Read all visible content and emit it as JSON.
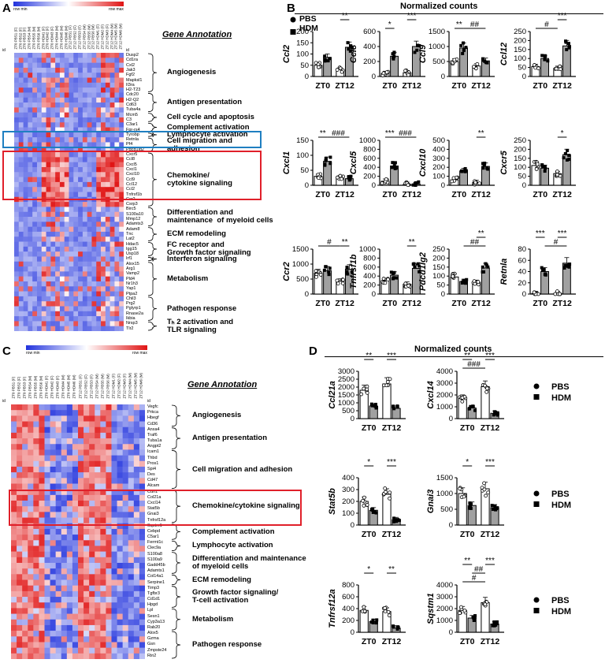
{
  "panels": {
    "A": "A",
    "B": "B",
    "C": "C",
    "D": "D"
  },
  "heatmapA": {
    "legend_min": "row min",
    "legend_max": "row max",
    "id_label": "id",
    "columns": [
      "ZT0 PBS1 (F)",
      "ZT0 PBS2 (F)",
      "ZT0 PBS3 (F)",
      "ZT0 PBS4 (M)",
      "ZT0 PBS5 (M)",
      "ZT0 PBS6 (M)",
      "ZT0 HDM1 (F)",
      "ZT0 HDM2 (F)",
      "ZT0 HDM3 (F)",
      "ZT0 HDM4 (M)",
      "ZT0 HDM5 (M)",
      "ZT0 HDM6 (M)",
      "ZT12 PBS1 (F)",
      "ZT12 PBS2 (F)",
      "ZT12 PBS3 (F)",
      "ZT12 PBS4 (M)",
      "ZT12 PBS5 (M)",
      "ZT12 PBS6 (M)",
      "ZT12 HDM1 (F)",
      "ZT12 HDM2 (F)",
      "ZT12 HDM3 (F)",
      "ZT12 HDM4 (M)",
      "ZT12 HDM5 (M)",
      "ZT12 HDM6 (M)"
    ],
    "genes": [
      "Dusp2",
      "Cd1ra",
      "Cxl2",
      "Jak3",
      "Fgf2",
      "Mapksl1",
      "Il3ra",
      "H2-T23",
      "Cdc20",
      "H2-Q2",
      "Cd63",
      "Tuba4a",
      "Mcm5",
      "C3",
      "C3ar1",
      "Fpr-rs4",
      "Tyrobp",
      "Retnla",
      "Pf4",
      "Pdcd1lg2",
      "Cxcr5",
      "Ccl8",
      "Cxcl5",
      "Cxcl1",
      "Cxcl10",
      "Ccl9",
      "Ccl12",
      "Ccl2",
      "Tnfrsf1b",
      "Ccr2",
      "Csrp3",
      "Birc5",
      "S100a10",
      "Mmp12",
      "Adamts3",
      "Adam8",
      "Tnc",
      "Lat2",
      "Hdac5",
      "Igg15",
      "Usp18",
      "Irf1",
      "Alox15",
      "Arg1",
      "Vamp2",
      "Pld4",
      "Nr1h3",
      "Yap1",
      "Ptpa2",
      "Chil3",
      "Prg2",
      "Pglyrp1",
      "Rnase2a",
      "Ikbia",
      "Nrsp3",
      "Tlr2"
    ],
    "title": "Gene Annotation",
    "annotations": [
      "Angiogenesis",
      "Antigen presentation",
      "Cell cycle and apoptosis",
      "Complement activation",
      "Lymphocyte activation",
      "Cell migration and\nadhesion",
      "Chemokine/\ncytokine signaling",
      "Differentiation and\nmaintenance  of myeloid cells",
      "ECM remodeling",
      "FC receptor and\nGrowth factor signaling",
      "Interferon signaling",
      "Metabolism",
      "Pathogen response",
      "Tₕ 2 activation and\nTLR signaling"
    ]
  },
  "heatmapC": {
    "legend_min": "row min",
    "legend_max": "row max",
    "id_label": "id",
    "columns": [
      "ZT0 PBS1 (F)",
      "ZT0 PBS2 (F)",
      "ZT0 PBS3 (F)",
      "ZT0 PBS4 (M)",
      "ZT0 PBS5 (M)",
      "ZT0 PBS6 (M)",
      "ZT0 HDM1 (F)",
      "ZT0 HDM2 (F)",
      "ZT0 HDM3 (F)",
      "ZT0 HDM4 (M)",
      "ZT0 HDM5 (M)",
      "ZT0 HDM6 (M)",
      "ZT12 PBS1 (F)",
      "ZT12 PBS2 (F)",
      "ZT12 PBS3 (F)",
      "ZT12 PBS4 (M)",
      "ZT12 PBS5 (M)",
      "ZT12 PBS6 (M)",
      "ZT12 HDM1 (F)",
      "ZT12 HDM2 (F)",
      "ZT12 HDM3 (F)",
      "ZT12 HDM4 (M)",
      "ZT12 HDM5 (M)",
      "ZT12 HDM6 (M)"
    ],
    "genes": [
      "Vegfc",
      "Prkca",
      "Hbegf",
      "Cd36",
      "Anxa4",
      "Traf6",
      "Tuba1a",
      "Angpt2",
      "Icam1",
      "Thbd",
      "Pros1",
      "Spi4",
      "Des",
      "Cd47",
      "Alcam",
      "Cdh1",
      "Col21a",
      "Cxcl14",
      "Stat5b",
      "Gnai3",
      "Tnfrsf12a",
      "Sqstm1",
      "Cebpd",
      "C5ar1",
      "Fermt1c",
      "Clec9a",
      "S100a8",
      "S100a9",
      "Gadd45b",
      "Adamts1",
      "Col14a1",
      "Serpine1",
      "Timp3",
      "Tgfbr3",
      "Cd1d1",
      "Hpgd",
      "Lpl",
      "Sesn1",
      "Cyp3a13",
      "Rab20",
      "Alox5",
      "Gzma",
      "Gsn",
      "Zmpste24",
      "Rin2"
    ],
    "title": "Gene Annotation",
    "annotations": [
      "Angiogenesis",
      "Antigen presentation",
      "Cell migration and adhesion",
      "Chemokine/cytokine signaling",
      "Complement activation",
      "Lymphocyte activation",
      "Differentiation and maintenance\nof myeloid cells",
      "ECM remodeling",
      "Growth factor signaling/\nT-cell activation",
      "Metabolism",
      "Pathogen response"
    ]
  },
  "panelB": {
    "title": "Normalized counts",
    "legend": [
      "PBS",
      "HDM"
    ],
    "x_labels": [
      "ZT0",
      "ZT12"
    ]
  },
  "panelD": {
    "title": "Normalized counts",
    "legend": [
      "PBS",
      "HDM"
    ],
    "x_labels": [
      "ZT0",
      "ZT12"
    ]
  },
  "chart_data": [
    {
      "type": "bar",
      "panel": "B",
      "gene": "Ccl2",
      "ylim": [
        0,
        200
      ],
      "yticks": [
        0,
        50,
        100,
        150,
        200
      ],
      "categories": [
        "ZT0",
        "ZT12"
      ],
      "series": [
        {
          "name": "PBS",
          "values": [
            50,
            30
          ]
        },
        {
          "name": "HDM",
          "values": [
            85,
            130
          ]
        }
      ],
      "annotations": [
        {
          "text": "**",
          "between": "ZT12 PBS-HDM"
        }
      ]
    },
    {
      "type": "bar",
      "panel": "B",
      "gene": "Ccl8",
      "ylim": [
        0,
        600
      ],
      "yticks": [
        0,
        200,
        400,
        600
      ],
      "categories": [
        "ZT0",
        "ZT12"
      ],
      "series": [
        {
          "name": "PBS",
          "values": [
            40,
            50
          ]
        },
        {
          "name": "HDM",
          "values": [
            270,
            400
          ]
        }
      ],
      "annotations": [
        {
          "text": "*",
          "between": "ZT0 PBS-HDM"
        },
        {
          "text": "***",
          "between": "ZT12 PBS-HDM"
        }
      ]
    },
    {
      "type": "bar",
      "panel": "B",
      "gene": "Ccl9",
      "ylim": [
        0,
        1500
      ],
      "yticks": [
        0,
        500,
        1000,
        1500
      ],
      "categories": [
        "ZT0",
        "ZT12"
      ],
      "series": [
        {
          "name": "PBS",
          "values": [
            500,
            350
          ]
        },
        {
          "name": "HDM",
          "values": [
            950,
            520
          ]
        }
      ],
      "annotations": [
        {
          "text": "**",
          "between": "ZT0 PBS-HDM"
        },
        {
          "text": "##",
          "between": "ZT0 HDM-ZT12 HDM"
        }
      ]
    },
    {
      "type": "bar",
      "panel": "B",
      "gene": "Ccl12",
      "ylim": [
        0,
        250
      ],
      "yticks": [
        0,
        50,
        100,
        150,
        200,
        250
      ],
      "categories": [
        "ZT0",
        "ZT12"
      ],
      "series": [
        {
          "name": "PBS",
          "values": [
            55,
            45
          ]
        },
        {
          "name": "HDM",
          "values": [
            100,
            170
          ]
        }
      ],
      "annotations": [
        {
          "text": "#",
          "between": "ZT0 PBS-ZT12 PBS"
        },
        {
          "text": "***",
          "between": "ZT12 PBS-HDM"
        }
      ]
    },
    {
      "type": "bar",
      "panel": "B",
      "gene": "Cxcl1",
      "ylim": [
        0,
        150
      ],
      "yticks": [
        0,
        50,
        100,
        150
      ],
      "categories": [
        "ZT0",
        "ZT12"
      ],
      "series": [
        {
          "name": "PBS",
          "values": [
            30,
            25
          ]
        },
        {
          "name": "HDM",
          "values": [
            80,
            22
          ]
        }
      ],
      "annotations": [
        {
          "text": "**",
          "between": "ZT0 PBS-HDM"
        },
        {
          "text": "###",
          "between": "ZT0 HDM-ZT12 HDM"
        }
      ]
    },
    {
      "type": "bar",
      "panel": "B",
      "gene": "Cxcl5",
      "ylim": [
        0,
        1000
      ],
      "yticks": [
        0,
        200,
        400,
        600,
        800,
        1000
      ],
      "categories": [
        "ZT0",
        "ZT12"
      ],
      "series": [
        {
          "name": "PBS",
          "values": [
            90,
            20
          ]
        },
        {
          "name": "HDM",
          "values": [
            430,
            25
          ]
        }
      ],
      "annotations": [
        {
          "text": "***",
          "between": "ZT0 PBS-HDM"
        },
        {
          "text": "###",
          "between": "ZT0 HDM-ZT12 HDM"
        }
      ]
    },
    {
      "type": "bar",
      "panel": "B",
      "gene": "Cxcl10",
      "ylim": [
        0,
        500
      ],
      "yticks": [
        0,
        100,
        200,
        300,
        400,
        500
      ],
      "categories": [
        "ZT0",
        "ZT12"
      ],
      "series": [
        {
          "name": "PBS",
          "values": [
            60,
            30
          ]
        },
        {
          "name": "HDM",
          "values": [
            160,
            210
          ]
        }
      ],
      "annotations": [
        {
          "text": "**",
          "between": "ZT12 PBS-HDM"
        }
      ]
    },
    {
      "type": "bar",
      "panel": "B",
      "gene": "Cxcr5",
      "ylim": [
        0,
        250
      ],
      "yticks": [
        0,
        50,
        100,
        150,
        200,
        250
      ],
      "categories": [
        "ZT0",
        "ZT12"
      ],
      "series": [
        {
          "name": "PBS",
          "values": [
            110,
            65
          ]
        },
        {
          "name": "HDM",
          "values": [
            95,
            170
          ]
        }
      ],
      "annotations": [
        {
          "text": "*",
          "between": "ZT12 PBS-HDM"
        }
      ]
    },
    {
      "type": "bar",
      "panel": "B",
      "gene": "Ccr2",
      "ylim": [
        0,
        1500
      ],
      "yticks": [
        0,
        500,
        1000,
        1500
      ],
      "categories": [
        "ZT0",
        "ZT12"
      ],
      "series": [
        {
          "name": "PBS",
          "values": [
            700,
            430
          ]
        },
        {
          "name": "HDM",
          "values": [
            780,
            830
          ]
        }
      ],
      "annotations": [
        {
          "text": "#",
          "between": "ZT0 PBS-ZT12 PBS"
        },
        {
          "text": "**",
          "between": "ZT12 PBS-HDM"
        }
      ]
    },
    {
      "type": "bar",
      "panel": "B",
      "gene": "Tnfrsf1b",
      "ylim": [
        0,
        1000
      ],
      "yticks": [
        0,
        200,
        400,
        600,
        800,
        1000
      ],
      "categories": [
        "ZT0",
        "ZT12"
      ],
      "series": [
        {
          "name": "PBS",
          "values": [
            300,
            220
          ]
        },
        {
          "name": "HDM",
          "values": [
            420,
            570
          ]
        }
      ],
      "annotations": [
        {
          "text": "**",
          "between": "ZT12 PBS-HDM"
        }
      ]
    },
    {
      "type": "bar",
      "panel": "B",
      "gene": "Pdcd1lg2",
      "ylim": [
        0,
        250
      ],
      "yticks": [
        0,
        50,
        100,
        150,
        200,
        250
      ],
      "categories": [
        "ZT0",
        "ZT12"
      ],
      "series": [
        {
          "name": "PBS",
          "values": [
            95,
            65
          ]
        },
        {
          "name": "HDM",
          "values": [
            70,
            145
          ]
        }
      ],
      "annotations": [
        {
          "text": "##",
          "between": "ZT0 HDM-ZT12 HDM"
        },
        {
          "text": "**",
          "between": "ZT12 PBS-HDM"
        }
      ]
    },
    {
      "type": "bar",
      "panel": "B",
      "gene": "Retnla",
      "ylim": [
        0,
        80
      ],
      "yticks": [
        0,
        20,
        40,
        60,
        80
      ],
      "categories": [
        "ZT0",
        "ZT12"
      ],
      "series": [
        {
          "name": "PBS",
          "values": [
            1,
            1
          ]
        },
        {
          "name": "HDM",
          "values": [
            40,
            55
          ]
        }
      ],
      "annotations": [
        {
          "text": "#",
          "between": "ZT0 HDM-ZT12 HDM"
        },
        {
          "text": "***",
          "between": "ZT0 PBS-HDM"
        },
        {
          "text": "***",
          "between": "ZT12 PBS-HDM"
        }
      ]
    },
    {
      "type": "bar",
      "panel": "D",
      "gene": "Ccl21a",
      "ylim": [
        0,
        3000
      ],
      "yticks": [
        0,
        500,
        1000,
        1500,
        2000,
        2500,
        3000
      ],
      "categories": [
        "ZT0",
        "ZT12"
      ],
      "series": [
        {
          "name": "PBS",
          "values": [
            1800,
            2200
          ]
        },
        {
          "name": "HDM",
          "values": [
            800,
            650
          ]
        }
      ],
      "annotations": [
        {
          "text": "**",
          "between": "ZT0 PBS-HDM"
        },
        {
          "text": "***",
          "between": "ZT12 PBS-HDM"
        }
      ]
    },
    {
      "type": "bar",
      "panel": "D",
      "gene": "Cxcl14",
      "ylim": [
        0,
        4000
      ],
      "yticks": [
        0,
        1000,
        2000,
        3000,
        4000
      ],
      "categories": [
        "ZT0",
        "ZT12"
      ],
      "series": [
        {
          "name": "PBS",
          "values": [
            1700,
            2700
          ]
        },
        {
          "name": "HDM",
          "values": [
            900,
            450
          ]
        }
      ],
      "annotations": [
        {
          "text": "###",
          "between": "ZT0 PBS-ZT12 PBS"
        },
        {
          "text": "**",
          "between": "ZT0 PBS-HDM"
        },
        {
          "text": "***",
          "between": "ZT12 PBS-HDM"
        }
      ]
    },
    {
      "type": "bar",
      "panel": "D",
      "gene": "Stat5b",
      "ylim": [
        0,
        400
      ],
      "yticks": [
        0,
        100,
        200,
        300,
        400
      ],
      "categories": [
        "ZT0",
        "ZT12"
      ],
      "series": [
        {
          "name": "PBS",
          "values": [
            200,
            260
          ]
        },
        {
          "name": "HDM",
          "values": [
            125,
            45
          ]
        }
      ],
      "annotations": [
        {
          "text": "*",
          "between": "ZT0 PBS-HDM"
        },
        {
          "text": "***",
          "between": "ZT12 PBS-HDM"
        }
      ]
    },
    {
      "type": "bar",
      "panel": "D",
      "gene": "Gnai3",
      "ylim": [
        0,
        1500
      ],
      "yticks": [
        0,
        500,
        1000,
        1500
      ],
      "categories": [
        "ZT0",
        "ZT12"
      ],
      "series": [
        {
          "name": "PBS",
          "values": [
            1000,
            1150
          ]
        },
        {
          "name": "HDM",
          "values": [
            620,
            550
          ]
        }
      ],
      "annotations": [
        {
          "text": "*",
          "between": "ZT0 PBS-HDM"
        },
        {
          "text": "***",
          "between": "ZT12 PBS-HDM"
        }
      ]
    },
    {
      "type": "bar",
      "panel": "D",
      "gene": "Tnfrsf12a",
      "ylim": [
        0,
        800
      ],
      "yticks": [
        0,
        200,
        400,
        600,
        800
      ],
      "categories": [
        "ZT0",
        "ZT12"
      ],
      "series": [
        {
          "name": "PBS",
          "values": [
            370,
            350
          ]
        },
        {
          "name": "HDM",
          "values": [
            180,
            70
          ]
        }
      ],
      "annotations": [
        {
          "text": "*",
          "between": "ZT0 PBS-HDM"
        },
        {
          "text": "**",
          "between": "ZT12 PBS-HDM"
        }
      ]
    },
    {
      "type": "bar",
      "panel": "D",
      "gene": "Sqstm1",
      "ylim": [
        0,
        4000
      ],
      "yticks": [
        0,
        1000,
        2000,
        3000,
        4000
      ],
      "categories": [
        "ZT0",
        "ZT12"
      ],
      "series": [
        {
          "name": "PBS",
          "values": [
            1850,
            2500
          ]
        },
        {
          "name": "HDM",
          "values": [
            1200,
            700
          ]
        }
      ],
      "annotations": [
        {
          "text": "#",
          "between": "ZT0 PBS-ZT12 PBS"
        },
        {
          "text": "##",
          "between": "ZT0 HDM-ZT12 PBS"
        },
        {
          "text": "**",
          "between": "ZT0 PBS-HDM"
        },
        {
          "text": "***",
          "between": "ZT12 PBS-HDM"
        }
      ]
    }
  ]
}
